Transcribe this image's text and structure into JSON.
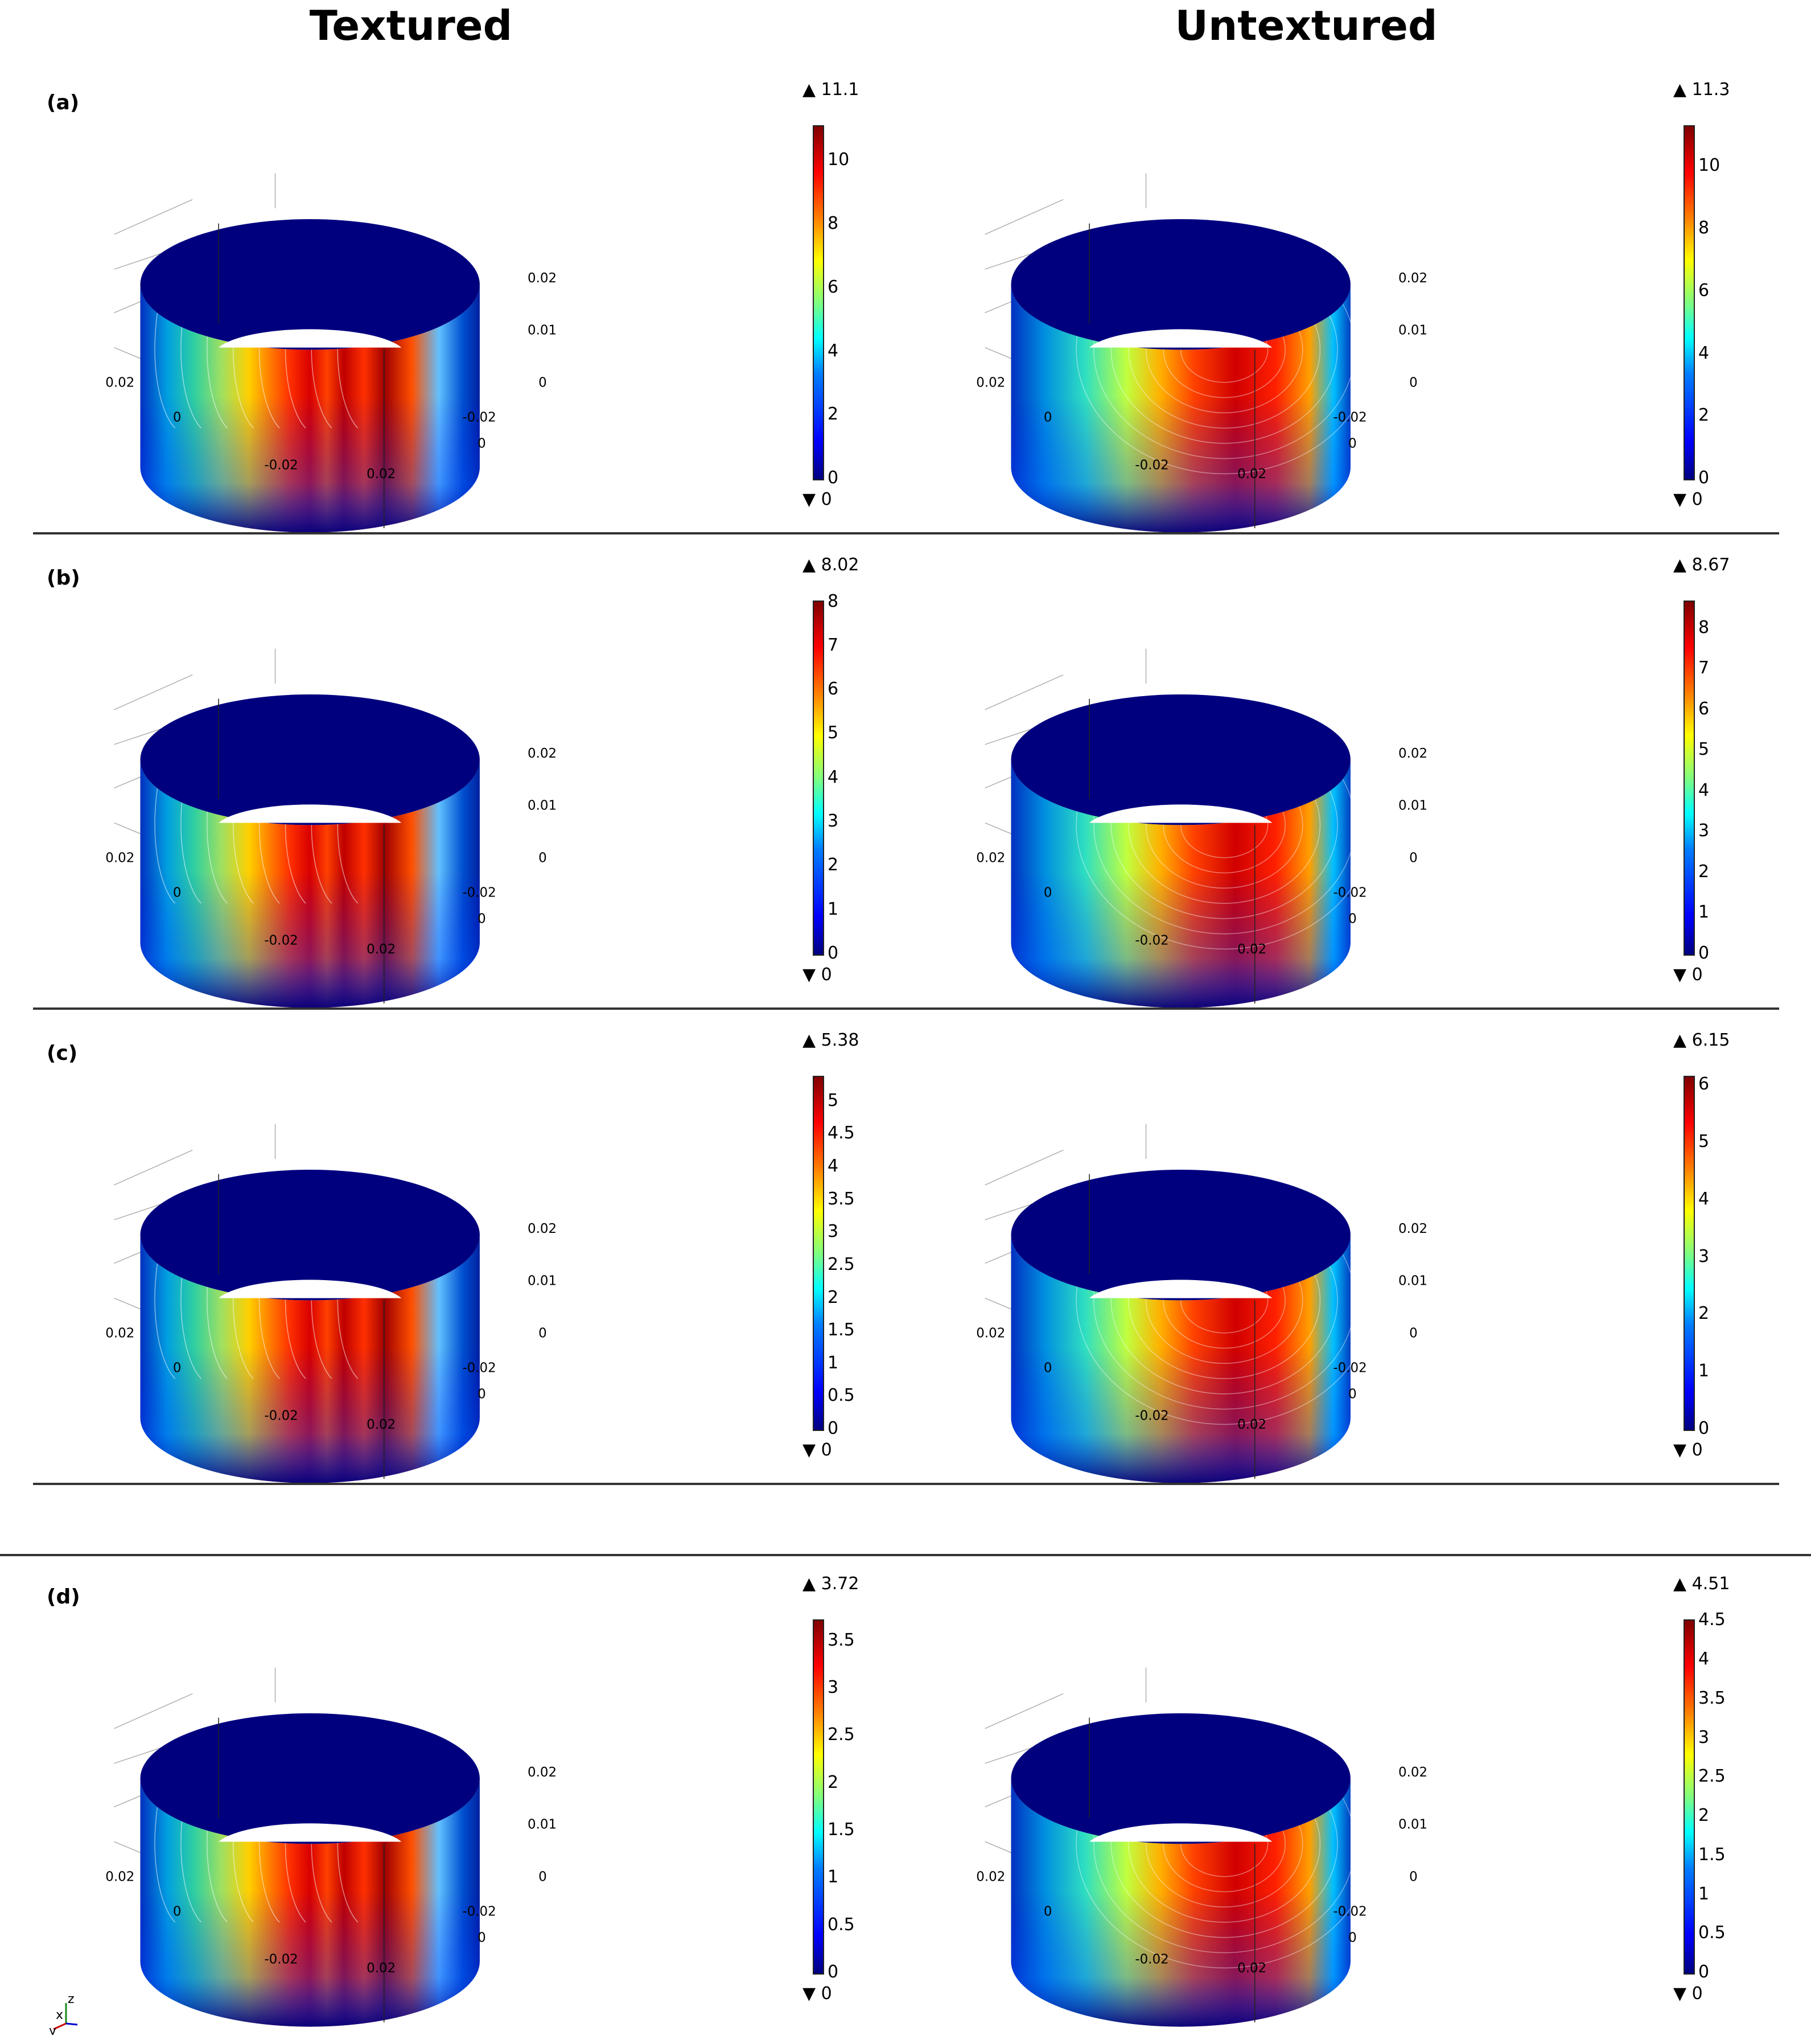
{
  "columns": {
    "left_title": "Textured",
    "right_title": "Untextured"
  },
  "axis_tick_labels": {
    "x_front": [
      "-0.02",
      "0.02"
    ],
    "x_back": [
      "0.02",
      "0"
    ],
    "y_right": [
      "0.02",
      "0.01",
      "0"
    ],
    "y_front": [
      "-0.02",
      "0"
    ]
  },
  "colorscale": [
    "#00007f",
    "#0000ff",
    "#007fff",
    "#00ffff",
    "#7fff7f",
    "#ffff00",
    "#ff7f00",
    "#ff0000",
    "#7f0000"
  ],
  "rows": [
    {
      "label": "(a)",
      "textured": {
        "max_label": "11.1",
        "min_label": "0",
        "max": 11.1,
        "ticks": [
          "10",
          "8",
          "6",
          "4",
          "2",
          "0"
        ],
        "tick_values": [
          10,
          8,
          6,
          4,
          2,
          0
        ]
      },
      "untextured": {
        "max_label": "11.3",
        "min_label": "0",
        "max": 11.3,
        "ticks": [
          "10",
          "8",
          "6",
          "4",
          "2",
          "0"
        ],
        "tick_values": [
          10,
          8,
          6,
          4,
          2,
          0
        ]
      }
    },
    {
      "label": "(b)",
      "textured": {
        "max_label": "8.02",
        "min_label": "0",
        "max": 8.02,
        "ticks": [
          "8",
          "7",
          "6",
          "5",
          "4",
          "3",
          "2",
          "1",
          "0"
        ],
        "tick_values": [
          8,
          7,
          6,
          5,
          4,
          3,
          2,
          1,
          0
        ]
      },
      "untextured": {
        "max_label": "8.67",
        "min_label": "0",
        "max": 8.67,
        "ticks": [
          "8",
          "7",
          "6",
          "5",
          "4",
          "3",
          "2",
          "1",
          "0"
        ],
        "tick_values": [
          8,
          7,
          6,
          5,
          4,
          3,
          2,
          1,
          0
        ]
      }
    },
    {
      "label": "(c)",
      "textured": {
        "max_label": "5.38",
        "min_label": "0",
        "max": 5.38,
        "ticks": [
          "5",
          "4.5",
          "4",
          "3.5",
          "3",
          "2.5",
          "2",
          "1.5",
          "1",
          "0.5",
          "0"
        ],
        "tick_values": [
          5,
          4.5,
          4,
          3.5,
          3,
          2.5,
          2,
          1.5,
          1,
          0.5,
          0
        ]
      },
      "untextured": {
        "max_label": "6.15",
        "min_label": "0",
        "max": 6.15,
        "ticks": [
          "6",
          "5",
          "4",
          "3",
          "2",
          "1",
          "0"
        ],
        "tick_values": [
          6,
          5,
          4,
          3,
          2,
          1,
          0
        ]
      }
    },
    {
      "label": "(d)",
      "textured": {
        "max_label": "3.72",
        "min_label": "0",
        "max": 3.72,
        "ticks": [
          "3.5",
          "3",
          "2.5",
          "2",
          "1.5",
          "1",
          "0.5",
          "0"
        ],
        "tick_values": [
          3.5,
          3,
          2.5,
          2,
          1.5,
          1,
          0.5,
          0
        ]
      },
      "untextured": {
        "max_label": "4.51",
        "min_label": "0",
        "max": 4.51,
        "ticks": [
          "4.5",
          "4",
          "3.5",
          "3",
          "2.5",
          "2",
          "1.5",
          "1",
          "0.5",
          "0"
        ],
        "tick_values": [
          4.5,
          4,
          3.5,
          3,
          2.5,
          2,
          1.5,
          1,
          0.5,
          0
        ]
      }
    }
  ],
  "triad": {
    "z": "z",
    "x": "x",
    "y": "y"
  }
}
